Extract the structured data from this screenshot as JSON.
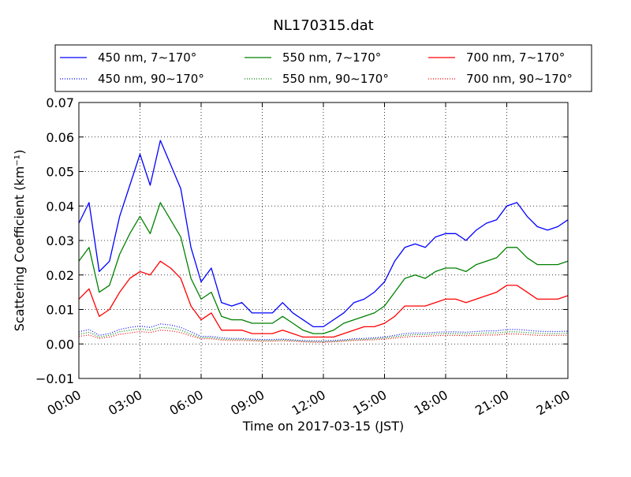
{
  "chart_data": {
    "type": "line",
    "title": "NL170315.dat",
    "xlabel": "Time on 2017-03-15 (JST)",
    "ylabel": "Scattering Coefficient (km⁻¹)",
    "xlim": [
      "00:00",
      "24:00"
    ],
    "ylim": [
      -0.01,
      0.07
    ],
    "x_tick_labels": [
      "00:00",
      "03:00",
      "06:00",
      "09:00",
      "12:00",
      "15:00",
      "18:00",
      "21:00",
      "24:00"
    ],
    "y_tick_labels": [
      "−0.01",
      "0.00",
      "0.01",
      "0.02",
      "0.03",
      "0.04",
      "0.05",
      "0.06",
      "0.07"
    ],
    "grid": true,
    "legend_position": "top",
    "x": [
      "00:00",
      "00:30",
      "01:00",
      "01:30",
      "02:00",
      "02:30",
      "03:00",
      "03:30",
      "04:00",
      "04:30",
      "05:00",
      "05:30",
      "06:00",
      "06:30",
      "07:00",
      "07:30",
      "08:00",
      "08:30",
      "09:00",
      "09:30",
      "10:00",
      "10:30",
      "11:00",
      "11:30",
      "12:00",
      "12:30",
      "13:00",
      "13:30",
      "14:00",
      "14:30",
      "15:00",
      "15:30",
      "16:00",
      "16:30",
      "17:00",
      "17:30",
      "18:00",
      "18:30",
      "19:00",
      "19:30",
      "20:00",
      "20:30",
      "21:00",
      "21:30",
      "22:00",
      "22:30",
      "23:00",
      "23:30",
      "24:00"
    ],
    "series": [
      {
        "name": "450 nm, 7∼170°",
        "color": "#0000ff",
        "style": "solid",
        "values": [
          0.035,
          0.041,
          0.021,
          0.024,
          0.037,
          0.046,
          0.055,
          0.046,
          0.059,
          0.052,
          0.045,
          0.028,
          0.018,
          0.022,
          0.012,
          0.011,
          0.012,
          0.009,
          0.009,
          0.009,
          0.012,
          0.009,
          0.007,
          0.005,
          0.005,
          0.007,
          0.009,
          0.012,
          0.013,
          0.015,
          0.018,
          0.024,
          0.028,
          0.029,
          0.028,
          0.031,
          0.032,
          0.032,
          0.03,
          0.033,
          0.035,
          0.036,
          0.04,
          0.041,
          0.037,
          0.034,
          0.033,
          0.034,
          0.036
        ]
      },
      {
        "name": "450 nm, 90∼170°",
        "color": "#0000ff",
        "style": "dotted",
        "values": [
          0.0035,
          0.0042,
          0.0025,
          0.003,
          0.0042,
          0.0048,
          0.0052,
          0.0048,
          0.0058,
          0.0055,
          0.0048,
          0.0035,
          0.0022,
          0.0022,
          0.0018,
          0.0016,
          0.0016,
          0.0014,
          0.0013,
          0.0013,
          0.0014,
          0.0012,
          0.001,
          0.0009,
          0.0009,
          0.001,
          0.0012,
          0.0015,
          0.0016,
          0.0018,
          0.002,
          0.0025,
          0.003,
          0.0032,
          0.0032,
          0.0034,
          0.0035,
          0.0035,
          0.0034,
          0.0036,
          0.0038,
          0.0038,
          0.0042,
          0.0042,
          0.004,
          0.0037,
          0.0036,
          0.0036,
          0.0037
        ]
      },
      {
        "name": "550 nm, 7∼170°",
        "color": "#008000",
        "style": "solid",
        "values": [
          0.024,
          0.028,
          0.015,
          0.017,
          0.026,
          0.032,
          0.037,
          0.032,
          0.041,
          0.036,
          0.031,
          0.019,
          0.013,
          0.015,
          0.008,
          0.007,
          0.007,
          0.006,
          0.006,
          0.006,
          0.008,
          0.006,
          0.004,
          0.003,
          0.003,
          0.004,
          0.006,
          0.007,
          0.008,
          0.009,
          0.011,
          0.015,
          0.019,
          0.02,
          0.019,
          0.021,
          0.022,
          0.022,
          0.021,
          0.023,
          0.024,
          0.025,
          0.028,
          0.028,
          0.025,
          0.023,
          0.023,
          0.023,
          0.024
        ]
      },
      {
        "name": "550 nm, 90∼170°",
        "color": "#008000",
        "style": "dotted",
        "values": [
          0.0028,
          0.0034,
          0.002,
          0.0025,
          0.0035,
          0.004,
          0.0044,
          0.004,
          0.0048,
          0.0046,
          0.004,
          0.0028,
          0.0018,
          0.0018,
          0.0014,
          0.0013,
          0.0013,
          0.0011,
          0.001,
          0.001,
          0.0012,
          0.001,
          0.0008,
          0.0007,
          0.0007,
          0.0008,
          0.001,
          0.0012,
          0.0013,
          0.0015,
          0.0017,
          0.0021,
          0.0025,
          0.0027,
          0.0027,
          0.0029,
          0.003,
          0.003,
          0.0029,
          0.003,
          0.0032,
          0.0032,
          0.0035,
          0.0035,
          0.0033,
          0.0031,
          0.003,
          0.003,
          0.0031
        ]
      },
      {
        "name": "700 nm, 7∼170°",
        "color": "#ff0000",
        "style": "solid",
        "values": [
          0.013,
          0.016,
          0.008,
          0.01,
          0.015,
          0.019,
          0.021,
          0.02,
          0.024,
          0.022,
          0.019,
          0.011,
          0.007,
          0.009,
          0.004,
          0.004,
          0.004,
          0.003,
          0.003,
          0.003,
          0.004,
          0.003,
          0.002,
          0.002,
          0.002,
          0.002,
          0.003,
          0.004,
          0.005,
          0.005,
          0.006,
          0.008,
          0.011,
          0.011,
          0.011,
          0.012,
          0.013,
          0.013,
          0.012,
          0.013,
          0.014,
          0.015,
          0.017,
          0.017,
          0.015,
          0.013,
          0.013,
          0.013,
          0.014
        ]
      },
      {
        "name": "700 nm, 90∼170°",
        "color": "#ff0000",
        "style": "dotted",
        "values": [
          0.0022,
          0.0026,
          0.0016,
          0.002,
          0.0028,
          0.0032,
          0.0036,
          0.0033,
          0.004,
          0.0038,
          0.0033,
          0.0023,
          0.0015,
          0.0015,
          0.0011,
          0.001,
          0.001,
          0.0009,
          0.0008,
          0.0008,
          0.0009,
          0.0008,
          0.0006,
          0.0005,
          0.0005,
          0.0006,
          0.0008,
          0.001,
          0.0011,
          0.0012,
          0.0014,
          0.0017,
          0.002,
          0.0022,
          0.0022,
          0.0024,
          0.0025,
          0.0025,
          0.0024,
          0.0025,
          0.0026,
          0.0026,
          0.0029,
          0.0029,
          0.0027,
          0.0025,
          0.0025,
          0.0025,
          0.0025
        ]
      }
    ]
  }
}
